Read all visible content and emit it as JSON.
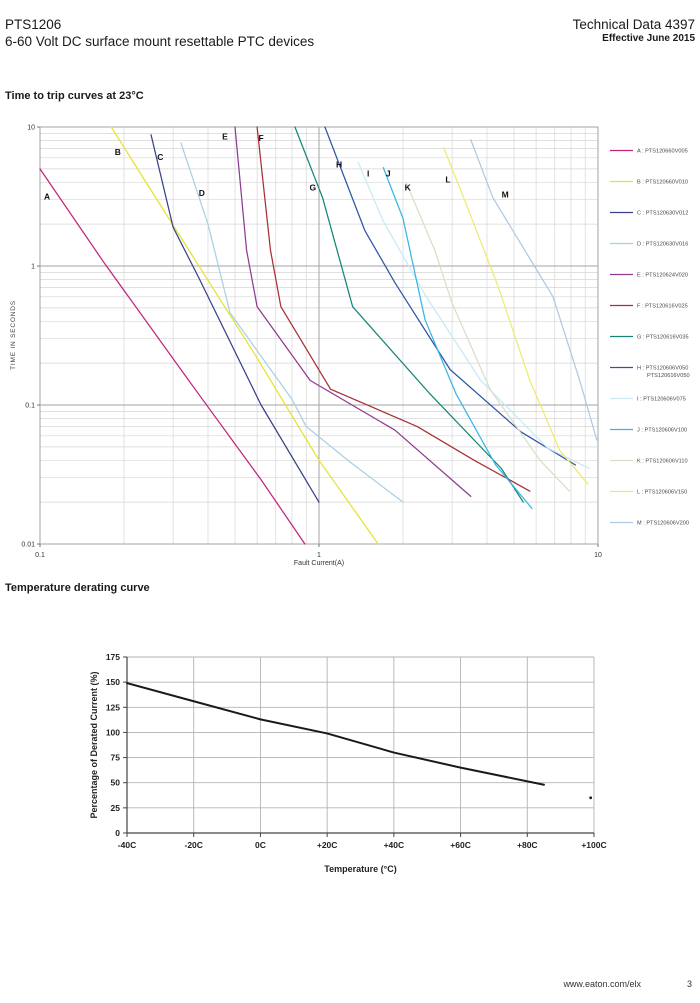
{
  "header": {
    "product": "PTS1206",
    "subtitle": "6-60 Volt DC surface mount resettable PTC devices",
    "doc_title": "Technical Data 4397",
    "effective": "Effective June 2015"
  },
  "sections": {
    "trip_title": "Time to trip curves at 23°C",
    "derating_title": "Temperature derating curve"
  },
  "footer": {
    "url": "www.eaton.com/elx",
    "page": "3"
  },
  "chart_data": [
    {
      "type": "line",
      "title": "Time to trip curves at 23°C",
      "xlabel": "Fault Current(A)",
      "ylabel": "TIME IN SECONDS",
      "xscale": "log",
      "yscale": "log",
      "xlim": [
        0.1,
        10
      ],
      "ylim": [
        0.01,
        10
      ],
      "grid": "log-minor",
      "legend_position": "right",
      "x_ticks": [
        {
          "v": 0.1,
          "label": "0.1"
        },
        {
          "v": 1,
          "label": "1"
        },
        {
          "v": 10,
          "label": "10"
        }
      ],
      "y_ticks": [
        {
          "v": 10,
          "label": "10"
        },
        {
          "v": 1,
          "label": "1"
        },
        {
          "v": 0.1,
          "label": "0.1"
        },
        {
          "v": 0.01,
          "label": "0.01"
        }
      ],
      "series": [
        {
          "label": "A",
          "parts": [
            "PTS120660V005"
          ],
          "color": "#c2247d",
          "label_at": [
            0.106,
            3.0
          ],
          "points": [
            [
              0.1,
              5.0
            ],
            [
              0.17,
              1.05
            ],
            [
              0.35,
              0.14
            ],
            [
              0.62,
              0.029
            ],
            [
              0.89,
              0.01
            ]
          ]
        },
        {
          "label": "B",
          "parts": [
            "PTS120660V010"
          ],
          "color": "#e6e22e",
          "label_at": [
            0.19,
            6.3
          ],
          "points": [
            [
              0.18,
              10
            ],
            [
              0.32,
              1.6
            ],
            [
              0.59,
              0.23
            ],
            [
              1.0,
              0.04
            ],
            [
              1.63,
              0.01
            ]
          ]
        },
        {
          "label": "C",
          "parts": [
            "PTS120630V012"
          ],
          "color": "#39418a",
          "label_at": [
            0.27,
            5.8
          ],
          "points": [
            [
              0.25,
              8.8
            ],
            [
              0.3,
              1.9
            ],
            [
              0.37,
              0.83
            ],
            [
              0.62,
              0.1
            ],
            [
              1.0,
              0.02
            ]
          ]
        },
        {
          "label": "D",
          "parts": [
            "PTS120630V016"
          ],
          "color": "#a9d0e4",
          "label_at": [
            0.38,
            3.2
          ],
          "points": [
            [
              0.32,
              7.7
            ],
            [
              0.4,
              2.0
            ],
            [
              0.48,
              0.46
            ],
            [
              0.8,
              0.11
            ],
            [
              0.9,
              0.07
            ],
            [
              1.29,
              0.039
            ],
            [
              2.0,
              0.02
            ]
          ]
        },
        {
          "label": "E",
          "parts": [
            "PTS120624V020"
          ],
          "color": "#8f3b8f",
          "label_at": [
            0.46,
            8.1
          ],
          "points": [
            [
              0.5,
              10
            ],
            [
              0.55,
              1.3
            ],
            [
              0.6,
              0.51
            ],
            [
              0.93,
              0.15
            ],
            [
              1.87,
              0.066
            ],
            [
              3.5,
              0.022
            ]
          ]
        },
        {
          "label": "F",
          "parts": [
            "PTS120616V025"
          ],
          "color": "#a92f33",
          "label_at": [
            0.62,
            7.9
          ],
          "points": [
            [
              0.6,
              10
            ],
            [
              0.67,
              1.3
            ],
            [
              0.73,
              0.51
            ],
            [
              1.1,
              0.13
            ],
            [
              2.25,
              0.07
            ],
            [
              3.6,
              0.04
            ],
            [
              5.7,
              0.024
            ]
          ]
        },
        {
          "label": "G",
          "parts": [
            "PTS120616V035"
          ],
          "color": "#148577",
          "label_at": [
            0.95,
            3.5
          ],
          "points": [
            [
              0.82,
              10
            ],
            [
              1.03,
              3.1
            ],
            [
              1.32,
              0.51
            ],
            [
              2.5,
              0.12
            ],
            [
              4.5,
              0.035
            ],
            [
              5.4,
              0.02
            ]
          ]
        },
        {
          "label": "H",
          "parts": [
            "PTS120606V050",
            "PTS120616V050"
          ],
          "color": "#2d55a5",
          "label_at": [
            1.18,
            5.1
          ],
          "points": [
            [
              1.05,
              10
            ],
            [
              1.46,
              1.8
            ],
            [
              1.87,
              0.76
            ],
            [
              2.95,
              0.18
            ],
            [
              5.3,
              0.064
            ],
            [
              8.3,
              0.037
            ]
          ]
        },
        {
          "label": "I",
          "parts": [
            "PTS120606V075"
          ],
          "color": "#c8e9f4",
          "label_at": [
            1.5,
            4.4
          ],
          "points": [
            [
              1.38,
              5.6
            ],
            [
              1.7,
              2.1
            ],
            [
              2.4,
              0.62
            ],
            [
              3.8,
              0.15
            ],
            [
              6.6,
              0.049
            ],
            [
              9.3,
              0.035
            ]
          ]
        },
        {
          "label": "J",
          "parts": [
            "PTS120606V100"
          ],
          "color": "#38b6e6",
          "label_at": [
            1.77,
            4.4
          ],
          "points": [
            [
              1.7,
              5.1
            ],
            [
              2.0,
              2.2
            ],
            [
              2.4,
              0.41
            ],
            [
              3.1,
              0.12
            ],
            [
              4.3,
              0.037
            ],
            [
              5.8,
              0.018
            ]
          ]
        },
        {
          "label": "K",
          "parts": [
            "PTS120606V110"
          ],
          "color": "#d8dfc8",
          "label_at": [
            2.08,
            3.5
          ],
          "points": [
            [
              2.05,
              4.0
            ],
            [
              2.6,
              1.3
            ],
            [
              3.0,
              0.54
            ],
            [
              4.1,
              0.13
            ],
            [
              6.2,
              0.04
            ],
            [
              7.9,
              0.024
            ]
          ]
        },
        {
          "label": "L",
          "parts": [
            "PTS120606V150"
          ],
          "color": "#eeea6e",
          "label_at": [
            2.9,
            4.0
          ],
          "points": [
            [
              2.8,
              7.1
            ],
            [
              3.3,
              3.1
            ],
            [
              4.4,
              0.7
            ],
            [
              5.7,
              0.15
            ],
            [
              7.3,
              0.047
            ],
            [
              9.2,
              0.027
            ]
          ]
        },
        {
          "label": "M",
          "parts": [
            "PTS120606V200"
          ],
          "color": "#b0c9e2",
          "label_at": [
            4.65,
            3.1
          ],
          "points": [
            [
              3.5,
              8.1
            ],
            [
              4.2,
              3.1
            ],
            [
              6.9,
              0.6
            ],
            [
              8.6,
              0.15
            ],
            [
              9.9,
              0.056
            ]
          ]
        }
      ]
    },
    {
      "type": "line",
      "title": "Temperature derating curve",
      "xlabel": "Temperature (°C)",
      "ylabel": "Percentage of Derated Current (%)",
      "xlim": [
        -40,
        100
      ],
      "ylim": [
        0,
        175
      ],
      "grid": "on",
      "x_ticks": [
        {
          "v": -40,
          "label": "-40C"
        },
        {
          "v": -20,
          "label": "-20C"
        },
        {
          "v": 0,
          "label": "0C"
        },
        {
          "v": 20,
          "label": "+20C"
        },
        {
          "v": 40,
          "label": "+40C"
        },
        {
          "v": 60,
          "label": "+60C"
        },
        {
          "v": 80,
          "label": "+80C"
        },
        {
          "v": 100,
          "label": "+100C"
        }
      ],
      "y_ticks": [
        {
          "v": 0,
          "label": "0"
        },
        {
          "v": 25,
          "label": "25"
        },
        {
          "v": 50,
          "label": "50"
        },
        {
          "v": 75,
          "label": "75"
        },
        {
          "v": 100,
          "label": "100"
        },
        {
          "v": 125,
          "label": "125"
        },
        {
          "v": 150,
          "label": "150"
        },
        {
          "v": 175,
          "label": "175"
        }
      ],
      "series": [
        {
          "label": "derating",
          "color": "#1a1a1a",
          "points": [
            [
              -40,
              149
            ],
            [
              -20,
              131
            ],
            [
              0,
              113
            ],
            [
              20,
              99
            ],
            [
              40,
              80
            ],
            [
              60,
              65
            ],
            [
              85,
              48
            ]
          ]
        }
      ],
      "stray_mark": [
        99,
        35
      ]
    }
  ]
}
